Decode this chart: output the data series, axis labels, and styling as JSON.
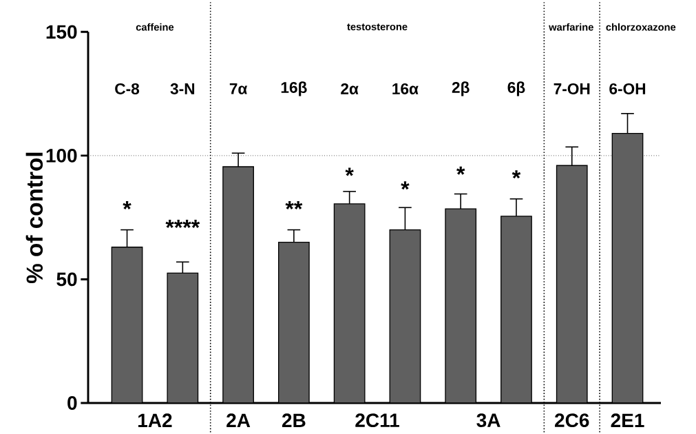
{
  "chart_data": {
    "type": "bar",
    "ylabel": "% of control",
    "categories": [
      "C-8",
      "3-N",
      "7α",
      "16β",
      "2α",
      "16α",
      "2β",
      "6β",
      "7-OH",
      "6-OH"
    ],
    "values": [
      63,
      52.5,
      95.5,
      65,
      80.5,
      70,
      78.5,
      75.5,
      96,
      109
    ],
    "color": "#606060",
    "errors": [
      [
        63,
        70
      ],
      [
        52.5,
        57
      ],
      [
        95.5,
        101
      ],
      [
        65,
        70
      ],
      [
        80.5,
        85.5
      ],
      [
        70,
        79
      ],
      [
        78.5,
        84.5
      ],
      [
        75.5,
        82.5
      ],
      [
        96,
        103.5
      ],
      [
        109,
        117
      ]
    ],
    "ylim": [
      0,
      150
    ],
    "yticks": [
      0,
      50,
      100,
      150
    ],
    "ref_lines": [
      {
        "axis": "y",
        "value": 100,
        "line_style": "dotted",
        "color": "#000000"
      }
    ],
    "annotations": [
      "1A2",
      "2A",
      "2B",
      "2C11",
      "3A",
      "2C6",
      "2E1",
      "caffeine",
      "testosterone",
      "warfarine",
      "chlorzoxazone",
      "*",
      "****",
      "**",
      "*",
      "*",
      "*",
      "*"
    ]
  }
}
